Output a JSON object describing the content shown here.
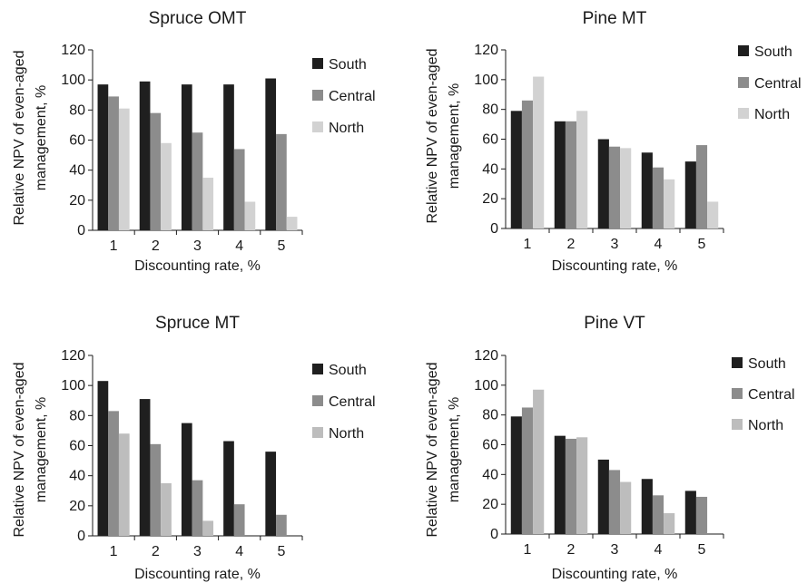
{
  "palette": {
    "South": "#1f1f1f",
    "Central": "#8c8c8c",
    "North": "#d2d2d2"
  },
  "chart_data": [
    {
      "type": "bar",
      "title": "Spruce OMT",
      "xlabel": "Discounting rate, %",
      "ylabel": "Relative NPV of even-aged management, %",
      "ylabel_lines": [
        "Relative NPV of even-aged",
        "management, %"
      ],
      "categories": [
        "1",
        "2",
        "3",
        "4",
        "5"
      ],
      "ylim": [
        0,
        120
      ],
      "yticks": [
        "0",
        "20",
        "40",
        "60",
        "80",
        "100",
        "120"
      ],
      "grid": false,
      "legend_position": "right",
      "series": [
        {
          "name": "South",
          "color": "#1f1f1f",
          "values": [
            97,
            99,
            97,
            97,
            101
          ]
        },
        {
          "name": "Central",
          "color": "#8c8c8c",
          "values": [
            89,
            78,
            65,
            54,
            64
          ]
        },
        {
          "name": "North",
          "color": "#d2d2d2",
          "values": [
            81,
            58,
            35,
            19,
            9
          ]
        }
      ]
    },
    {
      "type": "bar",
      "title": "Pine MT",
      "xlabel": "Discounting rate, %",
      "ylabel": "Relative NPV of even-aged management, %",
      "ylabel_lines": [
        "Relative NPV of even-aged",
        "management, %"
      ],
      "categories": [
        "1",
        "2",
        "3",
        "4",
        "5"
      ],
      "ylim": [
        0,
        120
      ],
      "yticks": [
        "0",
        "20",
        "40",
        "60",
        "80",
        "100",
        "120"
      ],
      "grid": false,
      "legend_position": "right",
      "series": [
        {
          "name": "South",
          "color": "#1f1f1f",
          "values": [
            79,
            72,
            60,
            51,
            45
          ]
        },
        {
          "name": "Central",
          "color": "#8c8c8c",
          "values": [
            86,
            72,
            55,
            41,
            56
          ]
        },
        {
          "name": "North",
          "color": "#d2d2d2",
          "values": [
            102,
            79,
            54,
            33,
            18
          ]
        }
      ]
    },
    {
      "type": "bar",
      "title": "Spruce MT",
      "xlabel": "Discounting rate, %",
      "ylabel": "Relative NPV of even-aged management, %",
      "ylabel_lines": [
        "Relative NPV of even-aged",
        "management, %"
      ],
      "categories": [
        "1",
        "2",
        "3",
        "4",
        "5"
      ],
      "ylim": [
        0,
        120
      ],
      "yticks": [
        "0",
        "20",
        "40",
        "60",
        "80",
        "100",
        "120"
      ],
      "grid": false,
      "legend_position": "right",
      "series": [
        {
          "name": "South",
          "color": "#1f1f1f",
          "values": [
            103,
            91,
            75,
            63,
            56
          ]
        },
        {
          "name": "Central",
          "color": "#8c8c8c",
          "values": [
            83,
            61,
            37,
            21,
            14
          ]
        },
        {
          "name": "North",
          "color": "#bdbdbd",
          "values": [
            68,
            35,
            10,
            0,
            0
          ]
        }
      ]
    },
    {
      "type": "bar",
      "title": "Pine VT",
      "xlabel": "Discounting rate, %",
      "ylabel": "Relative NPV of even-aged management, %",
      "ylabel_lines": [
        "Relative NPV of even-aged",
        "management, %"
      ],
      "categories": [
        "1",
        "2",
        "3",
        "4",
        "5"
      ],
      "ylim": [
        0,
        120
      ],
      "yticks": [
        "0",
        "20",
        "40",
        "60",
        "80",
        "100",
        "120"
      ],
      "grid": false,
      "legend_position": "right",
      "series": [
        {
          "name": "South",
          "color": "#1f1f1f",
          "values": [
            79,
            66,
            50,
            37,
            29
          ]
        },
        {
          "name": "Central",
          "color": "#8c8c8c",
          "values": [
            85,
            64,
            43,
            26,
            25
          ]
        },
        {
          "name": "North",
          "color": "#bdbdbd",
          "values": [
            97,
            65,
            35,
            14,
            0
          ]
        }
      ]
    }
  ]
}
